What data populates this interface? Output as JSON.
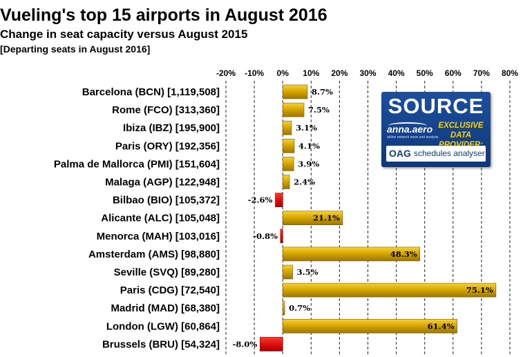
{
  "colors": {
    "positive_bar": "#d4a400",
    "negative_bar": "#e01010",
    "gridline": "#222222",
    "badge_blue": "#15428c",
    "badge_yellow": "#ffd200"
  },
  "badge": {
    "source_label": "SOURCE",
    "logo_text": "anna.aero",
    "logo_tagline": "airline network news and analysis",
    "exclusive_line1": "EXCLUSIVE",
    "exclusive_line2": "DATA PROVIDER:",
    "oag_label": "OAG",
    "oag_product": "schedules analyser"
  },
  "chart_data": {
    "type": "bar",
    "orientation": "horizontal",
    "title": "Vueling's top 15 airports in August 2016",
    "subtitle": "Change in seat capacity versus August 2015",
    "note": "[Departing seats in August 2016]",
    "xlim": [
      -20,
      80
    ],
    "x_ticks": [
      -20,
      -10,
      0,
      10,
      20,
      30,
      40,
      50,
      60,
      70,
      80
    ],
    "x_tick_labels": [
      "-20%",
      "-10%",
      "0%",
      "10%",
      "20%",
      "30%",
      "40%",
      "50%",
      "60%",
      "70%",
      "80%"
    ],
    "grid": true,
    "categories": [
      "Barcelona (BCN) [1,119,508]",
      "Rome (FCO) [313,360]",
      "Ibiza (IBZ) [195,900]",
      "Paris (ORY) [192,356]",
      "Palma de Mallorca (PMI) [151,604]",
      "Malaga (AGP) [122,948]",
      "Bilbao (BIO) [105,372]",
      "Alicante (ALC) [105,048]",
      "Menorca (MAH) [103,016]",
      "Amsterdam (AMS) [98,880]",
      "Seville (SVQ) [89,280]",
      "Paris (CDG) [72,540]",
      "Madrid (MAD) [68,380]",
      "London (LGW) [60,864]",
      "Brussels (BRU) [54,324]"
    ],
    "values": [
      8.7,
      7.5,
      3.1,
      4.1,
      3.9,
      2.4,
      -2.6,
      21.1,
      -0.8,
      48.3,
      3.5,
      75.1,
      0.7,
      61.4,
      -8.0
    ],
    "value_labels": [
      "8.7%",
      "7.5%",
      "3.1%",
      "4.1%",
      "3.9%",
      "2.4%",
      "-2.6%",
      "21.1%",
      "-0.8%",
      "48.3%",
      "3.5%",
      "75.1%",
      "0.7%",
      "61.4%",
      "-8.0%"
    ]
  }
}
